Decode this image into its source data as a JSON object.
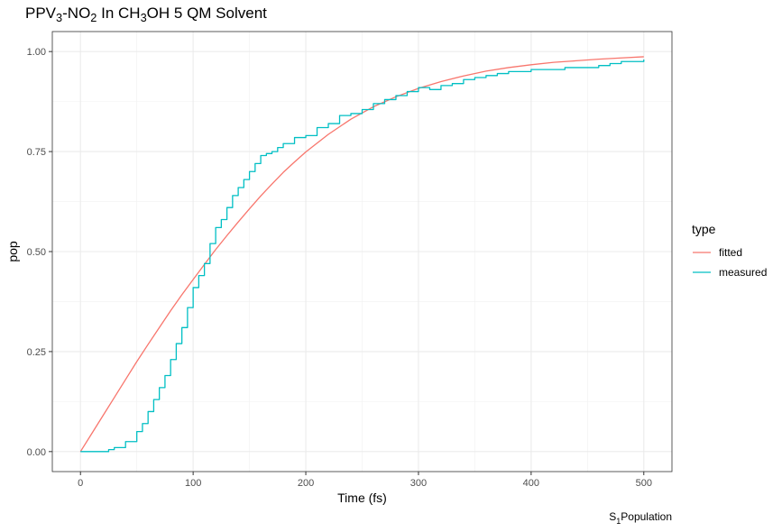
{
  "chart_data": {
    "type": "line",
    "title_parts": [
      {
        "text": "PPV",
        "shift": "base"
      },
      {
        "text": "3",
        "shift": "sub"
      },
      {
        "text": "-NO",
        "shift": "base"
      },
      {
        "text": "2",
        "shift": "sub"
      },
      {
        "text": " In CH",
        "shift": "base"
      },
      {
        "text": "3",
        "shift": "sub"
      },
      {
        "text": "OH 5 QM Solvent",
        "shift": "base"
      }
    ],
    "xlabel": "Time (fs)",
    "ylabel": "pop",
    "caption_parts": [
      {
        "text": "S",
        "shift": "base"
      },
      {
        "text": "1",
        "shift": "sub"
      },
      {
        "text": "Population",
        "shift": "base"
      }
    ],
    "xlim": [
      -25,
      525
    ],
    "ylim": [
      -0.05,
      1.05
    ],
    "xticks": [
      0,
      100,
      200,
      300,
      400,
      500
    ],
    "xtick_labels": [
      "0",
      "100",
      "200",
      "300",
      "400",
      "500"
    ],
    "yticks": [
      0,
      0.25,
      0.5,
      0.75,
      1.0
    ],
    "ytick_labels": [
      "0.00",
      "0.25",
      "0.50",
      "0.75",
      "1.00"
    ],
    "grid": true,
    "legend": {
      "title": "type",
      "placement": "right"
    },
    "series": [
      {
        "name": "fitted",
        "color": "#F8766D",
        "x": [
          0,
          10,
          20,
          30,
          40,
          50,
          60,
          70,
          80,
          90,
          100,
          110,
          120,
          130,
          140,
          150,
          160,
          170,
          180,
          190,
          200,
          220,
          240,
          260,
          280,
          300,
          320,
          340,
          360,
          380,
          400,
          420,
          440,
          460,
          480,
          500
        ],
        "y": [
          0.0,
          0.045,
          0.09,
          0.135,
          0.18,
          0.225,
          0.268,
          0.31,
          0.352,
          0.392,
          0.43,
          0.468,
          0.505,
          0.54,
          0.574,
          0.607,
          0.639,
          0.669,
          0.698,
          0.724,
          0.749,
          0.793,
          0.831,
          0.862,
          0.887,
          0.908,
          0.925,
          0.939,
          0.951,
          0.96,
          0.967,
          0.973,
          0.977,
          0.981,
          0.984,
          0.987
        ]
      },
      {
        "name": "measured",
        "color": "#00BFC4",
        "x": [
          0,
          10,
          20,
          25,
          30,
          40,
          50,
          55,
          60,
          65,
          70,
          75,
          80,
          85,
          90,
          95,
          100,
          105,
          110,
          115,
          120,
          125,
          130,
          135,
          140,
          145,
          150,
          155,
          160,
          165,
          170,
          175,
          180,
          190,
          200,
          210,
          220,
          230,
          240,
          250,
          260,
          270,
          280,
          290,
          300,
          310,
          320,
          330,
          340,
          350,
          360,
          370,
          380,
          390,
          400,
          410,
          420,
          430,
          440,
          450,
          460,
          470,
          480,
          490,
          500
        ],
        "y": [
          0.0,
          0.0,
          0.0,
          0.005,
          0.01,
          0.025,
          0.05,
          0.07,
          0.1,
          0.13,
          0.16,
          0.19,
          0.23,
          0.27,
          0.31,
          0.36,
          0.41,
          0.44,
          0.47,
          0.52,
          0.56,
          0.58,
          0.61,
          0.64,
          0.66,
          0.68,
          0.7,
          0.72,
          0.74,
          0.745,
          0.75,
          0.76,
          0.77,
          0.785,
          0.79,
          0.81,
          0.82,
          0.84,
          0.845,
          0.855,
          0.87,
          0.88,
          0.89,
          0.9,
          0.91,
          0.905,
          0.915,
          0.92,
          0.93,
          0.935,
          0.94,
          0.945,
          0.95,
          0.95,
          0.955,
          0.955,
          0.955,
          0.96,
          0.96,
          0.96,
          0.965,
          0.97,
          0.975,
          0.975,
          0.98
        ]
      }
    ]
  }
}
